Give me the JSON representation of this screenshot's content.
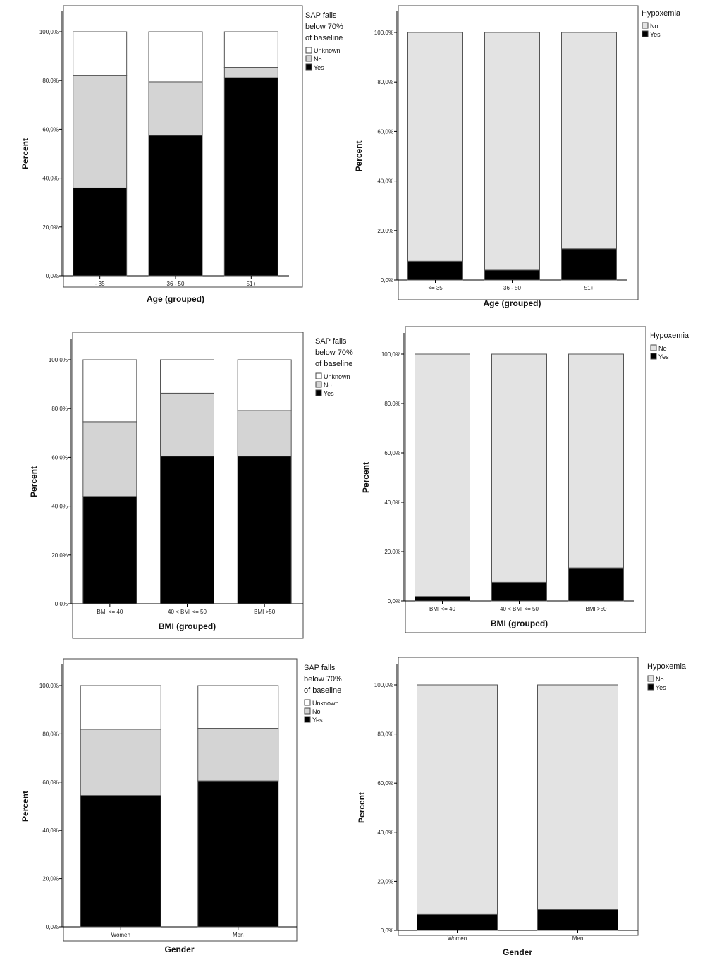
{
  "chart_data": [
    {
      "type": "bar",
      "stacked": true,
      "xlabel": "Age (grouped)",
      "ylabel": "Percent",
      "ylim": [
        0,
        100
      ],
      "yticks": [
        "0,0%",
        "20,0%",
        "40,0%",
        "60,0%",
        "80,0%",
        "100,0%"
      ],
      "categories": [
        "- 35",
        "36 - 50",
        "51+"
      ],
      "legend_title": [
        "SAP falls",
        "below 70%",
        "of baseline"
      ],
      "legend_position": "top-right",
      "series": [
        {
          "name": "Yes",
          "color": "#000000",
          "values": [
            36,
            57.5,
            81.2
          ]
        },
        {
          "name": "No",
          "color": "#d4d4d4",
          "values": [
            46,
            22,
            4.2
          ]
        },
        {
          "name": "Unknown",
          "color": "#ffffff",
          "values": [
            18,
            20.5,
            14.6
          ]
        }
      ]
    },
    {
      "type": "bar",
      "stacked": true,
      "xlabel": "Age (grouped)",
      "ylabel": "Percent",
      "ylim": [
        0,
        100
      ],
      "yticks": [
        "0,0%",
        "20,0%",
        "40,0%",
        "60,0%",
        "80,0%",
        "100,0%"
      ],
      "categories": [
        "<= 35",
        "36 - 50",
        "51+"
      ],
      "legend_title": [
        "Hypoxemia"
      ],
      "legend_position": "top-right",
      "series": [
        {
          "name": "Yes",
          "color": "#000000",
          "values": [
            7.6,
            4,
            12.6
          ]
        },
        {
          "name": "No",
          "color": "#e3e3e3",
          "values": [
            92.4,
            96,
            87.4
          ]
        }
      ]
    },
    {
      "type": "bar",
      "stacked": true,
      "xlabel": "BMI (grouped)",
      "ylabel": "Percent",
      "ylim": [
        0,
        100
      ],
      "yticks": [
        "0,0%",
        "20,0%",
        "40,0%",
        "60,0%",
        "80,0%",
        "100,0%"
      ],
      "categories": [
        "BMI <= 40",
        "40 < BMI <= 50",
        "BMI >50"
      ],
      "legend_title": [
        "SAP falls",
        "below 70%",
        "of baseline"
      ],
      "legend_position": "top-right",
      "series": [
        {
          "name": "Yes",
          "color": "#000000",
          "values": [
            44,
            60.5,
            60.5
          ]
        },
        {
          "name": "No",
          "color": "#d4d4d4",
          "values": [
            30.6,
            25.8,
            18.7
          ]
        },
        {
          "name": "Unknown",
          "color": "#ffffff",
          "values": [
            25.4,
            13.7,
            20.8
          ]
        }
      ]
    },
    {
      "type": "bar",
      "stacked": true,
      "xlabel": "BMI (grouped)",
      "ylabel": "Percent",
      "ylim": [
        0,
        100
      ],
      "yticks": [
        "0,0%",
        "20,0%",
        "40,0%",
        "60,0%",
        "80,0%",
        "100,0%"
      ],
      "categories": [
        "BMI <= 40",
        "40 < BMI <= 50",
        "BMI >50"
      ],
      "legend_title": [
        "Hypoxemia"
      ],
      "legend_position": "top-right",
      "series": [
        {
          "name": "Yes",
          "color": "#000000",
          "values": [
            1.8,
            7.6,
            13.4
          ]
        },
        {
          "name": "No",
          "color": "#e3e3e3",
          "values": [
            98.2,
            92.4,
            86.6
          ]
        }
      ]
    },
    {
      "type": "bar",
      "stacked": true,
      "xlabel": "Gender",
      "ylabel": "Percent",
      "ylim": [
        0,
        100
      ],
      "yticks": [
        "0,0%",
        "20,0%",
        "40,0%",
        "60,0%",
        "80,0%",
        "100,0%"
      ],
      "categories": [
        "Women",
        "Men"
      ],
      "legend_title": [
        "SAP falls",
        "below 70%",
        "of baseline"
      ],
      "legend_position": "top-right",
      "series": [
        {
          "name": "Yes",
          "color": "#000000",
          "values": [
            54.5,
            60.5
          ]
        },
        {
          "name": "No",
          "color": "#d4d4d4",
          "values": [
            27.4,
            21.8
          ]
        },
        {
          "name": "Unknown",
          "color": "#ffffff",
          "values": [
            18.1,
            17.7
          ]
        }
      ]
    },
    {
      "type": "bar",
      "stacked": true,
      "xlabel": "Gender",
      "ylabel": "Percent",
      "ylim": [
        0,
        100
      ],
      "yticks": [
        "0,0%",
        "20,0%",
        "40,0%",
        "60,0%",
        "80,0%",
        "100,0%"
      ],
      "categories": [
        "Women",
        "Men"
      ],
      "legend_title": [
        "Hypoxemia"
      ],
      "legend_position": "top-right",
      "series": [
        {
          "name": "Yes",
          "color": "#000000",
          "values": [
            6.5,
            8.5
          ]
        },
        {
          "name": "No",
          "color": "#e3e3e3",
          "values": [
            93.5,
            91.5
          ]
        }
      ]
    }
  ]
}
